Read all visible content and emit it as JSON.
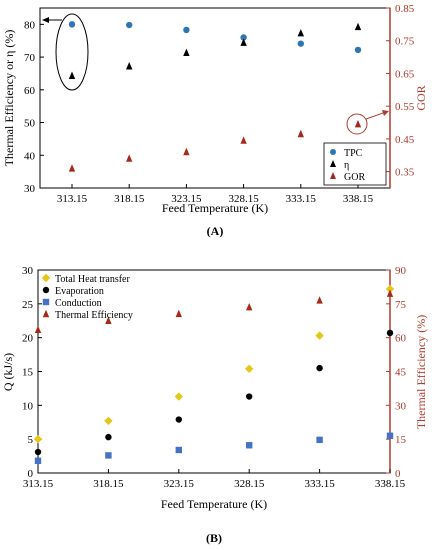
{
  "chart_data": [
    {
      "panel_label": "(A)",
      "type": "scatter",
      "x": [
        313.15,
        318.15,
        323.15,
        328.15,
        333.15,
        338.15
      ],
      "xticks": [
        "313.15",
        "318.15",
        "323.15",
        "328.15",
        "333.15",
        "338.15"
      ],
      "xlabel": "Feed Temperature (K)",
      "ylabel_left": "Thermal Efficiency or η (%)",
      "ylabel_right": "GOR",
      "ylim_left": [
        30,
        85
      ],
      "yticks_left": [
        30,
        40,
        50,
        60,
        70,
        80
      ],
      "ylim_right": [
        0.3,
        0.85
      ],
      "yticks_right": [
        "0.35",
        "0.45",
        "0.55",
        "0.65",
        "0.75",
        "0.85"
      ],
      "right_axis_color": "#b03a2e",
      "legend_position": "bottom-right",
      "series": [
        {
          "name": "TPC",
          "axis": "left",
          "marker": "circle",
          "color": "#2e75b6",
          "values": [
            80,
            79.8,
            78.3,
            76,
            74.1,
            72.2
          ]
        },
        {
          "name": "η",
          "axis": "left",
          "marker": "triangle",
          "color": "#000000",
          "values": [
            64.3,
            67.2,
            71.3,
            74.4,
            77.3,
            79.2
          ]
        },
        {
          "name": "GOR",
          "axis": "right",
          "marker": "triangle",
          "color": "#a52a1a",
          "values": [
            0.36,
            0.39,
            0.41,
            0.445,
            0.465,
            0.495
          ]
        }
      ]
    },
    {
      "panel_label": "(B)",
      "type": "scatter",
      "x": [
        313.15,
        318.15,
        323.15,
        328.15,
        333.15,
        338.15
      ],
      "xticks": [
        "313.15",
        "318.15",
        "323.15",
        "328.15",
        "333.15",
        "338.15"
      ],
      "xlabel": "Feed Temperature (K)",
      "ylabel_left": "Q (kJ/s)",
      "ylabel_right": "Thermal Efficiency (%)",
      "ylim_left": [
        0,
        30
      ],
      "yticks_left": [
        0,
        5,
        10,
        15,
        20,
        25,
        30
      ],
      "ylim_right": [
        0,
        90
      ],
      "yticks_right": [
        0,
        15,
        30,
        45,
        60,
        75,
        90
      ],
      "right_axis_color": "#b03a2e",
      "legend_position": "top-left",
      "series": [
        {
          "name": "Total Heat transfer",
          "axis": "left",
          "marker": "diamond",
          "color": "#e6c619",
          "values": [
            5.0,
            7.7,
            11.3,
            15.4,
            20.3,
            27.2
          ]
        },
        {
          "name": "Evaporation",
          "axis": "left",
          "marker": "circle",
          "color": "#000000",
          "values": [
            3.1,
            5.3,
            7.9,
            11.3,
            15.5,
            20.7
          ]
        },
        {
          "name": "Conduction",
          "axis": "left",
          "marker": "square",
          "color": "#4472c4",
          "values": [
            1.8,
            2.6,
            3.4,
            4.1,
            4.9,
            5.5
          ]
        },
        {
          "name": "Thermal Efficiency",
          "axis": "right",
          "marker": "triangle",
          "color": "#a52a1a",
          "values": [
            63.5,
            67.5,
            70.5,
            73.5,
            76.5,
            79.5
          ]
        }
      ]
    }
  ]
}
